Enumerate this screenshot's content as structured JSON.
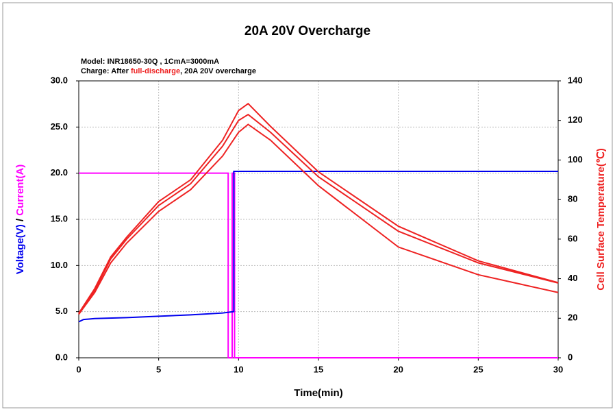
{
  "chart_data": {
    "type": "line",
    "title": "20A 20V  Overcharge",
    "subtitle": [
      "Model: INR18650-30Q , 1CmA=3000mA",
      "Charge: After ",
      "full-discharge",
      ", 20A 20V overcharge"
    ],
    "xlabel": "Time(min)",
    "ylabel": [
      "Voltage(V)",
      " / ",
      "Current(A)"
    ],
    "y2label": "Cell Surface Temperature(℃)",
    "xlim": [
      0,
      30
    ],
    "xticks": [
      0,
      5,
      10,
      15,
      20,
      25,
      30
    ],
    "ylim": [
      0,
      30
    ],
    "yticks": [
      {
        "value": 0,
        "label": "0.0"
      },
      {
        "value": 5,
        "label": "5.0"
      },
      {
        "value": 10,
        "label": "10.0"
      },
      {
        "value": 15,
        "label": "15.0"
      },
      {
        "value": 20,
        "label": "20.0"
      },
      {
        "value": 25,
        "label": "25.0"
      },
      {
        "value": 30,
        "label": "30.0"
      }
    ],
    "y2lim": [
      0,
      140
    ],
    "y2ticks": [
      0,
      20,
      40,
      60,
      80,
      100,
      120,
      140
    ],
    "grid": true,
    "series": [
      {
        "color": "#ff00ff",
        "x": [
          0,
          9.35,
          9.35,
          9.6,
          9.6,
          9.75,
          9.75,
          30
        ],
        "values": [
          20,
          20,
          0,
          0,
          20,
          20,
          0,
          0
        ]
      },
      {
        "color": "#0000ee",
        "x": [
          0,
          0.3,
          1,
          3,
          5,
          7,
          9,
          9.7,
          9.7,
          30
        ],
        "values": [
          3.9,
          4.15,
          4.25,
          4.35,
          4.5,
          4.65,
          4.85,
          5.0,
          20.2,
          20.2
        ]
      },
      {
        "color": "#ee2222",
        "axis": "y2",
        "x": [
          0,
          1,
          2,
          3,
          5,
          7,
          9,
          10,
          10.6,
          12,
          15,
          20,
          25,
          30
        ],
        "values": [
          22.5,
          35,
          51,
          61,
          79,
          90,
          110,
          125,
          128.5,
          117,
          94,
          66.5,
          49,
          38
        ]
      },
      {
        "color": "#ee2222",
        "axis": "y2",
        "x": [
          0,
          1,
          2,
          3,
          5,
          7,
          9,
          10,
          10.6,
          12,
          15,
          20,
          25,
          30
        ],
        "values": [
          22,
          34,
          50,
          60,
          77,
          88,
          107,
          120,
          123,
          114,
          91.5,
          64,
          48,
          37.8
        ]
      },
      {
        "color": "#ee2222",
        "axis": "y2",
        "x": [
          0,
          1,
          2,
          3,
          5,
          7,
          9,
          10,
          10.6,
          12,
          15,
          20,
          25,
          30
        ],
        "values": [
          22,
          33,
          48,
          58,
          74,
          85,
          102,
          114,
          118,
          110,
          87,
          56,
          42,
          33
        ]
      }
    ]
  }
}
